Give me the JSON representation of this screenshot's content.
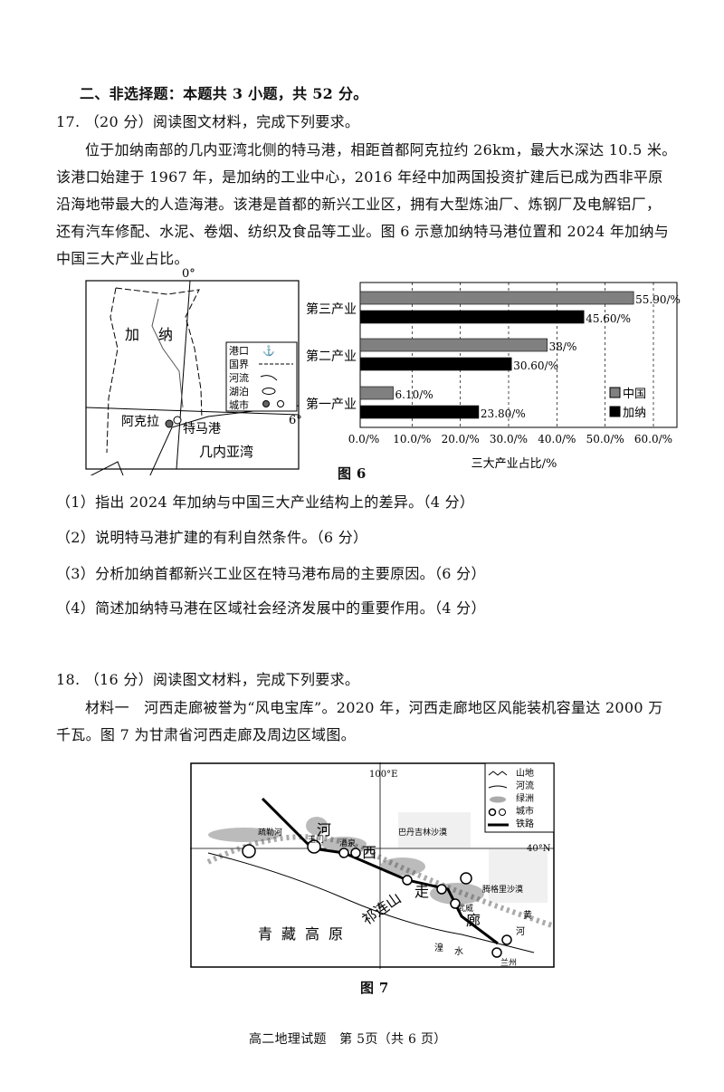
{
  "section_heading": "二、非选择题：本题共 3 小题，共 52 分。",
  "q17": {
    "title": "17. （20 分）阅读图文材料，完成下列要求。",
    "paragraph": [
      "位于加纳南部的几内亚湾北侧的特马港，相距首都阿克拉约 26km，最大水深达 10.5 米。",
      "该港口始建于 1967 年，是加纳的工业中心，2016 年经中加两国投资扩建后已成为西非平原",
      "沿海地带最大的人造海港。该港是首都的新兴工业区，拥有大型炼油厂、炼钢厂及电解铝厂，",
      "还有汽车修配、水泥、卷烟、纺织及食品等工业。图 6 示意加纳特马港位置和 2024 年加纳与",
      "中国三大产业占比。"
    ],
    "map": {
      "lon_label": "0°",
      "lat_label": "6°",
      "country": [
        "加",
        "纳"
      ],
      "capital": "阿克拉",
      "port": "特马港",
      "gulf": "几内亚湾",
      "legend": [
        "港口",
        "国界",
        "河流",
        "湖泊",
        "城市"
      ]
    },
    "figure_caption": "图 6",
    "questions": [
      "（1）指出 2024 年加纳与中国三大产业结构上的差异。（4 分）",
      "（2）说明特马港扩建的有利自然条件。（6 分）",
      "（3）分析加纳首都新兴工业区在特马港布局的主要原因。（6 分）",
      "（4）简述加纳特马港在区域社会经济发展中的重要作用。（4 分）"
    ]
  },
  "chart_data": {
    "type": "bar",
    "orientation": "horizontal",
    "categories": [
      "第三产业",
      "第二产业",
      "第一产业"
    ],
    "series": [
      {
        "name": "中国",
        "color": "#808080",
        "values": [
          55.9,
          38,
          6.1
        ],
        "labels": [
          "55.90/%",
          "38/%",
          "6.10/%"
        ]
      },
      {
        "name": "加纳",
        "color": "#000000",
        "values": [
          45.6,
          30.6,
          23.8
        ],
        "labels": [
          "45.60/%",
          "30.60/%",
          "23.80/%"
        ]
      }
    ],
    "xlabel": "三大产业占比/%",
    "xlim": [
      0,
      60
    ],
    "ticks": [
      "0.0/%",
      "10.0/%",
      "20.0/%",
      "30.0/%",
      "40.0/%",
      "50.0/%",
      "60.0/%"
    ],
    "grid": "vertical dashed",
    "legend": "bottom-right"
  },
  "q18": {
    "title": "18. （16 分）阅读图文材料，完成下列要求。",
    "paragraph": [
      "材料一　河西走廊被誉为“风电宝库”。2020 年，河西走廊地区风能装机容量达 2000 万",
      "千瓦。图 7 为甘肃省河西走廊及周边区域图。"
    ],
    "map": {
      "lon_label": "100°E",
      "lat_label": "40°N",
      "plateau": "青藏高原",
      "mountain": "祁连山",
      "corridor": [
        "河",
        "西",
        "走",
        "廊"
      ],
      "places": [
        "疏勒河",
        "玉门",
        "酒泉",
        "巴丹吉林沙漠",
        "腾格里沙漠",
        "武威",
        "兰州",
        "湟",
        "水",
        "黄",
        "河"
      ],
      "legend": [
        "山地",
        "河流",
        "绿洲",
        "城市",
        "铁路"
      ]
    },
    "figure_caption": "图 7"
  },
  "footer": "高二地理试题　第 5页（共 6 页）"
}
